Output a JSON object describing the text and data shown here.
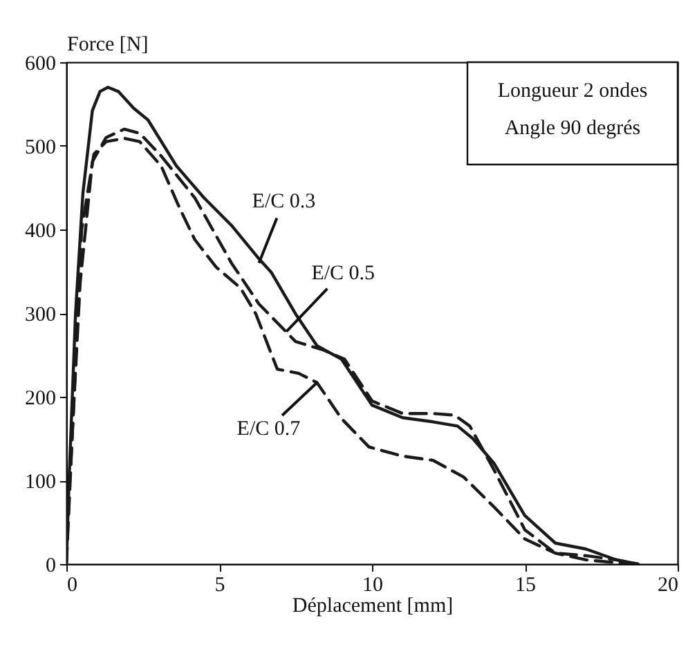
{
  "chart_data": {
    "type": "line",
    "xlabel": "Déplacement [mm]",
    "ylabel": "Force [N]",
    "xlim": [
      0,
      20
    ],
    "ylim": [
      0,
      600
    ],
    "xticks": [
      0,
      5,
      10,
      15,
      20
    ],
    "yticks": [
      0,
      100,
      200,
      300,
      400,
      500,
      600
    ],
    "grid": false,
    "marker": "none",
    "series": [
      {
        "line_style": "solid",
        "color": "#1a1a1a",
        "x": [
          0,
          0.1,
          0.3,
          0.54,
          0.85,
          1.1,
          1.36,
          1.7,
          2.2,
          2.67,
          3.6,
          4.5,
          5.4,
          6.3,
          6.7,
          7.5,
          8.2,
          9,
          10,
          11,
          12,
          12.8,
          13.3,
          14,
          15,
          16,
          17,
          18,
          18.7
        ],
        "values": [
          0,
          112,
          300,
          443,
          542,
          565,
          570,
          565,
          545,
          531,
          476,
          438,
          405,
          365,
          349,
          299,
          261,
          245,
          190,
          175,
          170,
          165,
          150,
          120,
          58,
          25,
          18,
          5,
          0
        ]
      },
      {
        "line_style": "dashed",
        "color": "#1a1a1a",
        "x": [
          0,
          0.1,
          0.45,
          0.85,
          1.3,
          1.9,
          2.4,
          3.1,
          4.2,
          5.4,
          6.3,
          7.5,
          8.4,
          9.1,
          10,
          11,
          12,
          12.7,
          13.2,
          14,
          15,
          16,
          17,
          18,
          18.7
        ],
        "values": [
          0,
          90,
          336,
          481,
          510,
          520,
          515,
          488,
          438,
          360,
          311,
          266,
          256,
          245,
          195,
          180,
          180,
          178,
          165,
          112,
          41,
          13,
          10,
          5,
          0
        ]
      },
      {
        "line_style": "dashed",
        "color": "#1a1a1a",
        "x": [
          0,
          0.1,
          0.5,
          0.9,
          1.3,
          1.9,
          2.4,
          3.1,
          3.7,
          4.2,
          4.9,
          5.7,
          6.2,
          6.9,
          7.6,
          8.2,
          9,
          9.9,
          11,
          12,
          13,
          14,
          15,
          16,
          17,
          18.5
        ],
        "values": [
          0,
          80,
          400,
          490,
          505,
          509,
          505,
          476,
          426,
          388,
          355,
          330,
          299,
          233,
          228,
          217,
          174,
          140,
          129,
          124,
          104,
          68,
          30,
          13,
          5,
          0
        ]
      }
    ],
    "annotations": [
      {
        "text": "E/C 0.3",
        "x": 6.3,
        "y": 360
      },
      {
        "text": "E/C 0.5",
        "x": 7.2,
        "y": 278
      },
      {
        "text": "E/C 0.7",
        "x": 8.2,
        "y": 217
      },
      "Longueur 2 ondes",
      "Angle 90 degrés"
    ]
  }
}
